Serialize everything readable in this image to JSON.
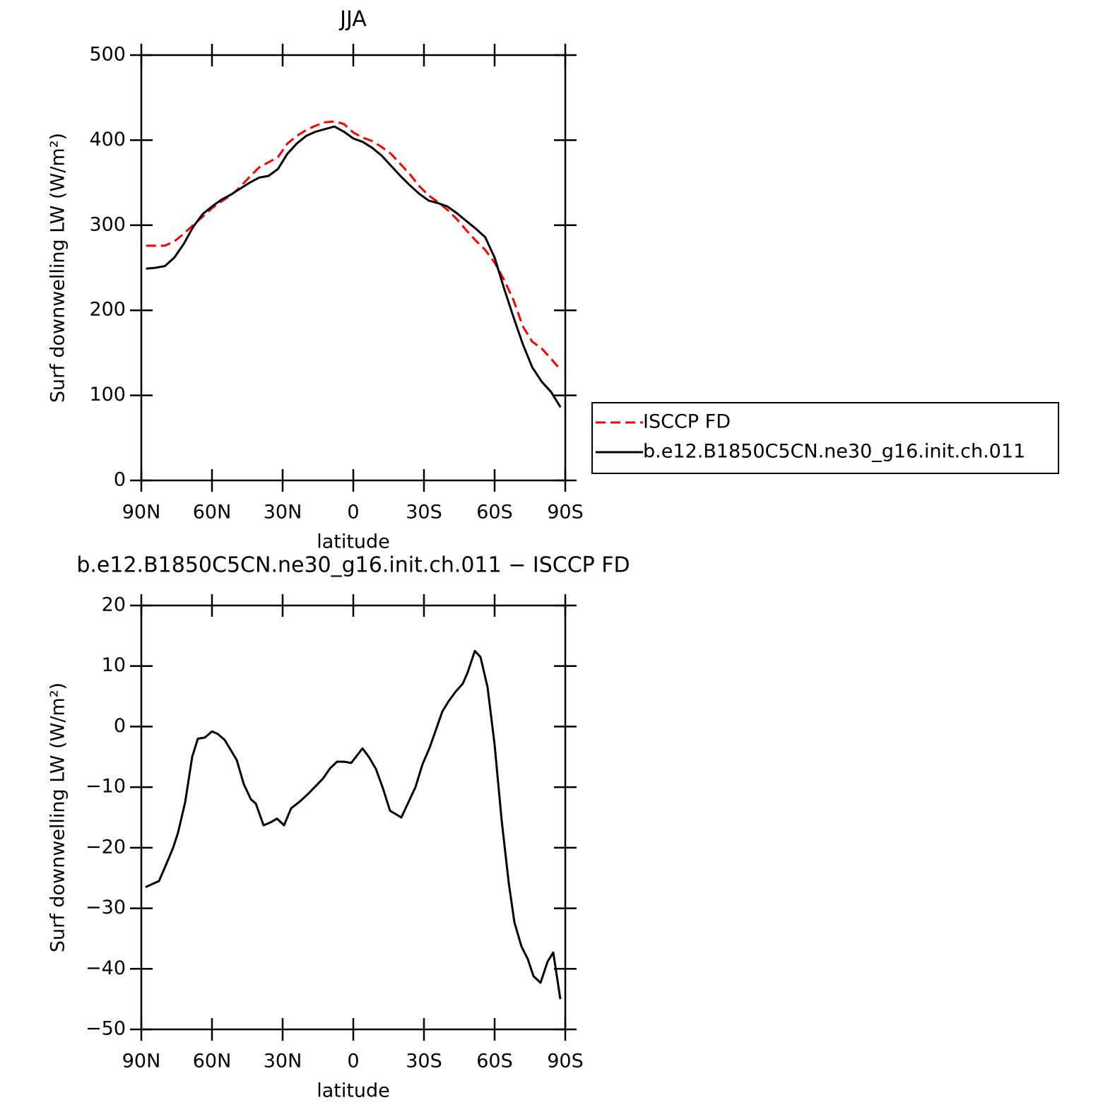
{
  "chart_data": [
    {
      "type": "line",
      "title": "JJA",
      "xlabel": "latitude",
      "ylabel": "Surf downwelling LW (W/m²)",
      "x": [
        88,
        84,
        80,
        76,
        72,
        68,
        64,
        60,
        56,
        52,
        48,
        44,
        40,
        36,
        32,
        28,
        24,
        20,
        16,
        12,
        8,
        4,
        0,
        -4,
        -8,
        -12,
        -16,
        -20,
        -24,
        -28,
        -32,
        -36,
        -40,
        -44,
        -48,
        -52,
        -56,
        -60,
        -64,
        -68,
        -72,
        -76,
        -80,
        -84,
        -88
      ],
      "series": [
        {
          "name": "ISCCP FD",
          "color": "#ff0000",
          "style": "dashed",
          "values": [
            276,
            276,
            276,
            281,
            290,
            300,
            310,
            320,
            328,
            335,
            345,
            357,
            368,
            374,
            380,
            396,
            405,
            412,
            417,
            421,
            422,
            419,
            409,
            403,
            399,
            392,
            384,
            372,
            360,
            346,
            335,
            327,
            318,
            307,
            294,
            282,
            271,
            256,
            236,
            212,
            181,
            163,
            155,
            143,
            130
          ]
        },
        {
          "name": "b.e12.B1850C5CN.ne30_g16.init.ch.011",
          "color": "#000000",
          "style": "solid",
          "values": [
            249,
            250,
            252,
            262,
            278,
            298,
            313,
            322,
            330,
            336,
            343,
            350,
            356,
            358,
            366,
            384,
            396,
            405,
            410,
            413,
            416,
            410,
            402,
            398,
            391,
            382,
            370,
            358,
            347,
            337,
            329,
            326,
            322,
            314,
            305,
            296,
            286,
            262,
            226,
            192,
            160,
            133,
            116,
            104,
            86
          ]
        }
      ],
      "xlim": [
        90,
        -90
      ],
      "xticks": [
        {
          "value": 90,
          "label": "90N"
        },
        {
          "value": 60,
          "label": "60N"
        },
        {
          "value": 30,
          "label": "30N"
        },
        0,
        {
          "value": -30,
          "label": "30S"
        },
        {
          "value": -60,
          "label": "60S"
        },
        {
          "value": -90,
          "label": "90S"
        }
      ],
      "ylim": [
        0,
        500
      ],
      "yticks": [
        0,
        100,
        200,
        300,
        400,
        500
      ],
      "legend": "right"
    },
    {
      "type": "line",
      "title": "b.e12.B1850C5CN.ne30_g16.init.ch.011 − ISCCP FD",
      "xlabel": "latitude",
      "ylabel": "Surf downwelling LW (W/m²)",
      "x": [
        88.2,
        82.5,
        79.5,
        76.5,
        74.4,
        71.4,
        68.4,
        66,
        63,
        60,
        57.6,
        54.6,
        49.5,
        46.5,
        43.5,
        41.4,
        38.1,
        35.1,
        32.4,
        29.4,
        26.4,
        22.5,
        18.9,
        15.9,
        12.9,
        9.9,
        6.9,
        3.9,
        0.9,
        -3.9,
        -6.6,
        -9.6,
        -12.6,
        -15.6,
        -20.4,
        -26.4,
        -29.4,
        -32.4,
        -35.1,
        -37.8,
        -40.5,
        -43.5,
        -46.5,
        -48.6,
        -51.6,
        -54,
        -57,
        -60,
        -63,
        -66,
        -68.4,
        -71.4,
        -74.1,
        -76.5,
        -79.5,
        -82.5,
        -84.9,
        -87.9
      ],
      "series": [
        {
          "color": "#000000",
          "style": "solid",
          "values": [
            -26.5,
            -25.5,
            -22.8,
            -20,
            -17.5,
            -12.5,
            -5,
            -2,
            -1.8,
            -0.8,
            -1.2,
            -2.2,
            -5.5,
            -9.5,
            -12,
            -12.7,
            -16.3,
            -15.8,
            -15.2,
            -16.3,
            -13.5,
            -12.3,
            -11,
            -9.8,
            -8.6,
            -6.9,
            -5.8,
            -5.8,
            -6,
            -3.6,
            -5,
            -7,
            -10.2,
            -13.9,
            -15,
            -10,
            -6.2,
            -3.5,
            -0.5,
            2.5,
            4.2,
            5.8,
            7.1,
            9,
            12.5,
            11.5,
            6.5,
            -3,
            -15.5,
            -25.8,
            -32.3,
            -36.3,
            -38.4,
            -41.2,
            -42.3,
            -38.8,
            -37.3,
            -45
          ]
        }
      ],
      "xlim": [
        90,
        -90
      ],
      "xticks": [
        {
          "value": 90,
          "label": "90N"
        },
        {
          "value": 60,
          "label": "60N"
        },
        {
          "value": 30,
          "label": "30N"
        },
        0,
        {
          "value": -30,
          "label": "30S"
        },
        {
          "value": -60,
          "label": "60S"
        },
        {
          "value": -90,
          "label": "90S"
        }
      ],
      "ylim": [
        -50,
        20
      ],
      "yticks": [
        {
          "value": -50,
          "label": "−50"
        },
        {
          "value": -40,
          "label": "−40"
        },
        {
          "value": -30,
          "label": "−30"
        },
        {
          "value": -20,
          "label": "−20"
        },
        {
          "value": -10,
          "label": "−10"
        },
        0,
        10,
        20
      ]
    }
  ]
}
